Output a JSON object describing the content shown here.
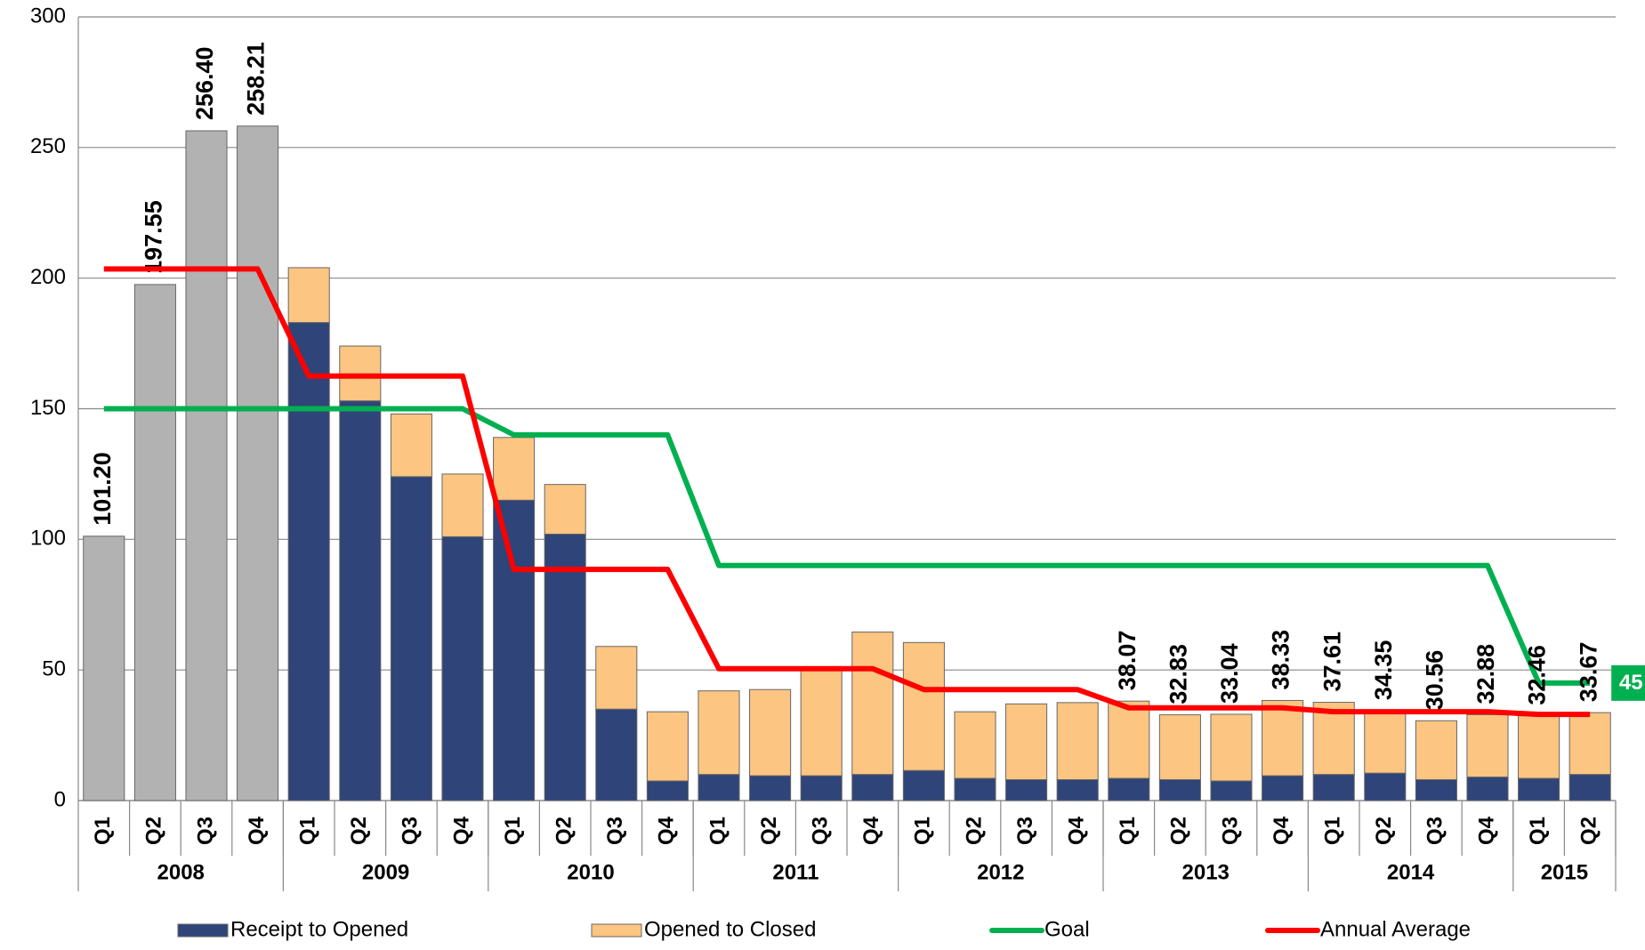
{
  "chart_data": {
    "type": "stacked-bar-line",
    "year_groups": [
      {
        "year": "2008",
        "quarters": [
          "Q1",
          "Q2",
          "Q3",
          "Q4"
        ]
      },
      {
        "year": "2009",
        "quarters": [
          "Q1",
          "Q2",
          "Q3",
          "Q4"
        ]
      },
      {
        "year": "2010",
        "quarters": [
          "Q1",
          "Q2",
          "Q3",
          "Q4"
        ]
      },
      {
        "year": "2011",
        "quarters": [
          "Q1",
          "Q2",
          "Q3",
          "Q4"
        ]
      },
      {
        "year": "2012",
        "quarters": [
          "Q1",
          "Q2",
          "Q3",
          "Q4"
        ]
      },
      {
        "year": "2013",
        "quarters": [
          "Q1",
          "Q2",
          "Q3",
          "Q4"
        ]
      },
      {
        "year": "2014",
        "quarters": [
          "Q1",
          "Q2",
          "Q3",
          "Q4"
        ]
      },
      {
        "year": "2015",
        "quarters": [
          "Q1",
          "Q2"
        ]
      }
    ],
    "series": [
      {
        "kind": "bar",
        "color": "#b2b2b2",
        "values": [
          101.2,
          197.55,
          256.4,
          258.21,
          null,
          null,
          null,
          null,
          null,
          null,
          null,
          null,
          null,
          null,
          null,
          null,
          null,
          null,
          null,
          null,
          null,
          null,
          null,
          null,
          null,
          null,
          null,
          null,
          null,
          null
        ],
        "value_labels": [
          "101.20",
          "197.55",
          "256.40",
          "258.21",
          null,
          null,
          null,
          null,
          null,
          null,
          null,
          null,
          null,
          null,
          null,
          null,
          null,
          null,
          null,
          null,
          null,
          null,
          null,
          null,
          null,
          null,
          null,
          null,
          null,
          null
        ]
      },
      {
        "kind": "bar",
        "name": "Receipt to Opened",
        "color": "#2f4478",
        "values": [
          null,
          null,
          null,
          null,
          183,
          153,
          124,
          101,
          115,
          102,
          35,
          7.5,
          10,
          9.5,
          9.5,
          10,
          11.5,
          8.5,
          8,
          8,
          8.5,
          8,
          7.5,
          9.5,
          10,
          10.5,
          8,
          9,
          8.5,
          10
        ]
      },
      {
        "kind": "bar",
        "name": "Opened to Closed",
        "color": "#fcc581",
        "values": [
          null,
          null,
          null,
          null,
          21,
          21,
          24,
          24,
          24,
          19,
          24,
          26.5,
          32,
          33,
          41.5,
          54.5,
          49,
          25.5,
          29,
          29.5,
          29.57,
          24.83,
          25.54,
          28.83,
          27.61,
          23.85,
          22.56,
          23.88,
          23.96,
          23.67
        ]
      },
      {
        "kind": "line",
        "name": "Goal",
        "color": "#00b050",
        "values": [
          150,
          150,
          150,
          150,
          150,
          150,
          150,
          150,
          140,
          140,
          140,
          140,
          90,
          90,
          90,
          90,
          90,
          90,
          90,
          90,
          90,
          90,
          90,
          90,
          90,
          90,
          90,
          90,
          45,
          45
        ],
        "end_label": "45"
      },
      {
        "kind": "line",
        "name": "Annual Average",
        "color": "#ff0000",
        "values": [
          203.5,
          203.5,
          203.5,
          203.5,
          162.5,
          162.5,
          162.5,
          162.5,
          88.5,
          88.5,
          88.5,
          88.5,
          50.5,
          50.5,
          50.5,
          50.5,
          42.5,
          42.5,
          42.5,
          42.5,
          35.5,
          35.5,
          35.5,
          35.5,
          34,
          34,
          34,
          34,
          33,
          33
        ]
      }
    ],
    "totals": [
      null,
      null,
      null,
      null,
      null,
      null,
      null,
      null,
      null,
      null,
      null,
      null,
      null,
      null,
      null,
      null,
      null,
      null,
      null,
      null,
      38.07,
      32.83,
      33.04,
      38.33,
      37.61,
      34.35,
      30.56,
      32.88,
      32.46,
      33.67
    ],
    "ylim": [
      0,
      300
    ],
    "yticks": [
      0,
      50,
      100,
      150,
      200,
      250,
      300
    ],
    "grid": true
  }
}
